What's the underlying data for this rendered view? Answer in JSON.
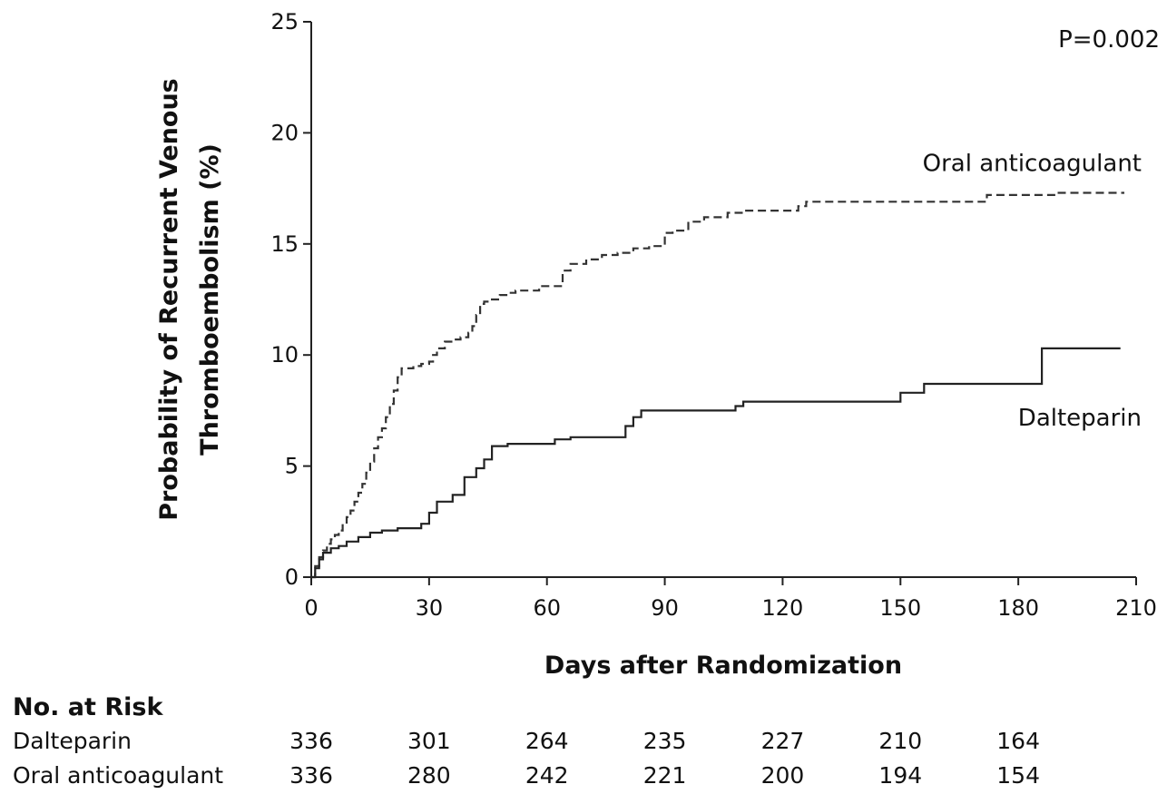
{
  "chart_data": {
    "type": "line",
    "xlabel": "Days after Randomization",
    "ylabel_lines": [
      "Probability of Recurrent Venous",
      "Thromboembolism (%)"
    ],
    "x_ticks": [
      0,
      30,
      60,
      90,
      120,
      150,
      180,
      210
    ],
    "y_ticks": [
      0,
      5,
      10,
      15,
      20,
      25
    ],
    "xlim": [
      0,
      210
    ],
    "ylim": [
      0,
      25
    ],
    "grid": false,
    "annotation": "P=0.002",
    "series": [
      {
        "name": "Oral anticoagulant",
        "style": "dashed",
        "color": "#333333",
        "x": [
          0,
          1,
          2,
          3,
          4,
          5,
          6,
          7,
          8,
          9,
          10,
          11,
          12,
          13,
          14,
          15,
          16,
          17,
          18,
          19,
          20,
          21,
          22,
          23,
          24,
          25,
          26,
          28,
          30,
          31,
          32,
          34,
          36,
          38,
          40,
          41,
          42,
          43,
          44,
          46,
          48,
          50,
          52,
          56,
          58,
          62,
          64,
          66,
          70,
          74,
          78,
          82,
          86,
          90,
          92,
          96,
          100,
          104,
          106,
          110,
          112,
          120,
          124,
          126,
          130,
          140,
          150,
          160,
          170,
          172,
          180,
          190,
          200,
          207
        ],
        "y": [
          0,
          0.5,
          0.9,
          1.2,
          1.5,
          1.7,
          1.9,
          2.1,
          2.4,
          2.7,
          3.0,
          3.4,
          3.8,
          4.2,
          4.7,
          5.2,
          5.8,
          6.3,
          6.7,
          7.2,
          7.8,
          8.4,
          9.0,
          9.4,
          9.4,
          9.4,
          9.5,
          9.6,
          9.7,
          10.0,
          10.3,
          10.6,
          10.7,
          10.8,
          11.0,
          11.3,
          11.8,
          12.3,
          12.4,
          12.5,
          12.7,
          12.8,
          12.9,
          12.9,
          13.1,
          13.1,
          13.8,
          14.1,
          14.3,
          14.5,
          14.6,
          14.8,
          14.9,
          15.5,
          15.6,
          16.0,
          16.2,
          16.2,
          16.4,
          16.5,
          16.5,
          16.5,
          16.7,
          16.9,
          16.9,
          16.9,
          16.9,
          16.9,
          16.9,
          17.2,
          17.2,
          17.3,
          17.3,
          17.3
        ]
      },
      {
        "name": "Dalteparin",
        "style": "solid",
        "color": "#222222",
        "x": [
          0,
          1,
          2,
          3,
          5,
          7,
          9,
          12,
          15,
          18,
          22,
          28,
          30,
          32,
          36,
          39,
          42,
          44,
          46,
          50,
          56,
          60,
          62,
          66,
          70,
          76,
          80,
          82,
          84,
          90,
          100,
          108,
          110,
          120,
          130,
          140,
          148,
          150,
          156,
          160,
          170,
          186,
          190,
          200,
          206
        ],
        "y": [
          0,
          0.4,
          0.8,
          1.1,
          1.3,
          1.4,
          1.6,
          1.8,
          2.0,
          2.1,
          2.2,
          2.4,
          2.9,
          3.4,
          3.7,
          4.5,
          4.9,
          5.3,
          5.9,
          6.0,
          6.0,
          6.0,
          6.2,
          6.3,
          6.3,
          6.3,
          6.8,
          7.2,
          7.5,
          7.5,
          7.5,
          7.7,
          7.9,
          7.9,
          7.9,
          7.9,
          7.9,
          8.3,
          8.7,
          8.7,
          8.7,
          10.3,
          10.3,
          10.3,
          10.3
        ]
      }
    ]
  },
  "risk_table": {
    "title": "No. at Risk",
    "days": [
      0,
      30,
      60,
      90,
      120,
      150,
      180
    ],
    "rows": [
      {
        "label": "Dalteparin",
        "values": [
          "336",
          "301",
          "264",
          "235",
          "227",
          "210",
          "164"
        ]
      },
      {
        "label": "Oral anticoagulant",
        "values": [
          "336",
          "280",
          "242",
          "221",
          "200",
          "194",
          "154"
        ]
      }
    ]
  }
}
